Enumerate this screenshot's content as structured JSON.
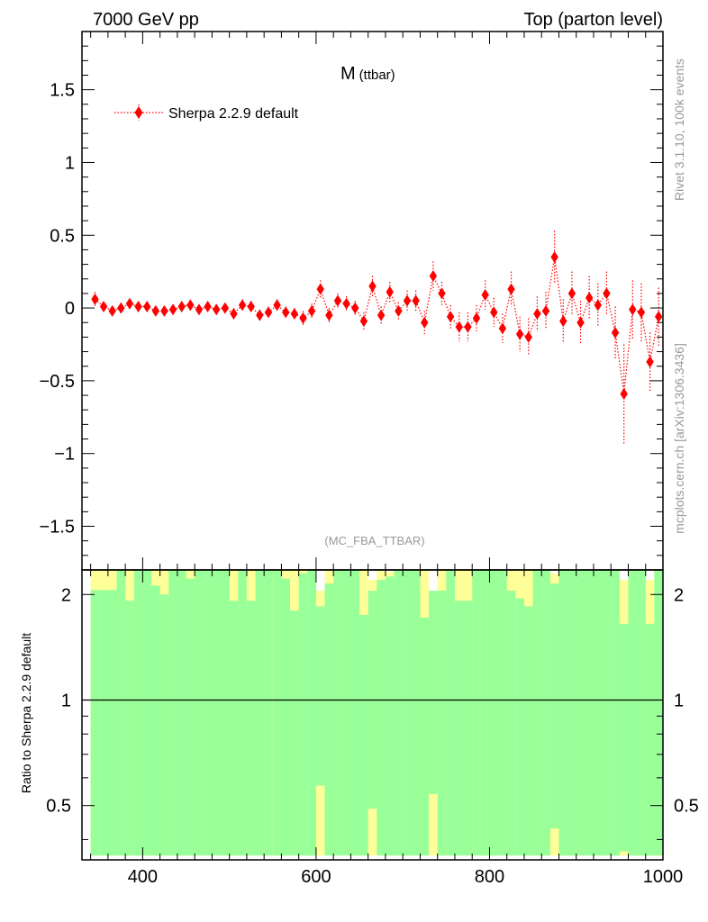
{
  "header": {
    "left_label": "7000 GeV pp",
    "right_label": "Top (parton level)"
  },
  "side_labels": {
    "rivet": "Rivet 3.1.10,  100k events",
    "mcplots": "mcplots.cern.ch [arXiv:1306.3436]"
  },
  "chart_data": [
    {
      "type": "line",
      "title": "M",
      "title_sub": "(ttbar)",
      "watermark": "(MC_FBA_TTBAR)",
      "xlim": [
        330,
        1000
      ],
      "ylim": [
        -1.8,
        1.9
      ],
      "yticks": [
        -1.5,
        -1,
        -0.5,
        0,
        0.5,
        1,
        1.5
      ],
      "ytick_labels": [
        "−1.5",
        "−1",
        "−0.5",
        "0",
        "0.5",
        "1",
        "1.5"
      ],
      "legend": "top-left",
      "series": [
        {
          "name": "Sherpa 2.2.9 default",
          "color": "#ff0000",
          "marker": "diamond",
          "line_style": "dotted",
          "x": [
            345,
            355,
            365,
            375,
            385,
            395,
            405,
            415,
            425,
            435,
            445,
            455,
            465,
            475,
            485,
            495,
            505,
            515,
            525,
            535,
            545,
            555,
            565,
            575,
            585,
            595,
            605,
            615,
            625,
            635,
            645,
            655,
            665,
            675,
            685,
            695,
            705,
            715,
            725,
            735,
            745,
            755,
            765,
            775,
            785,
            795,
            805,
            815,
            825,
            835,
            845,
            855,
            865,
            875,
            885,
            895,
            905,
            915,
            925,
            935,
            945,
            955,
            965,
            975,
            985,
            995
          ],
          "y": [
            0.06,
            0.01,
            -0.02,
            0.0,
            0.03,
            0.01,
            0.01,
            -0.02,
            -0.02,
            -0.01,
            0.01,
            0.02,
            -0.01,
            0.01,
            -0.01,
            0.0,
            -0.04,
            0.02,
            0.01,
            -0.05,
            -0.03,
            0.02,
            -0.03,
            -0.04,
            -0.07,
            -0.02,
            0.13,
            -0.05,
            0.05,
            0.03,
            0.0,
            -0.09,
            0.15,
            -0.05,
            0.11,
            -0.02,
            0.05,
            0.05,
            -0.1,
            0.22,
            0.1,
            -0.06,
            -0.13,
            -0.13,
            -0.07,
            0.09,
            -0.03,
            -0.14,
            0.13,
            -0.18,
            -0.2,
            -0.04,
            -0.02,
            0.35,
            -0.09,
            0.1,
            -0.1,
            0.07,
            0.02,
            0.1,
            -0.17,
            -0.59,
            -0.01,
            -0.03,
            -0.37,
            -0.06
          ],
          "yerr": [
            0.05,
            0.03,
            0.03,
            0.03,
            0.03,
            0.03,
            0.03,
            0.03,
            0.03,
            0.03,
            0.03,
            0.03,
            0.03,
            0.03,
            0.03,
            0.03,
            0.04,
            0.04,
            0.04,
            0.04,
            0.04,
            0.04,
            0.04,
            0.04,
            0.05,
            0.05,
            0.06,
            0.05,
            0.05,
            0.05,
            0.05,
            0.06,
            0.07,
            0.06,
            0.07,
            0.06,
            0.07,
            0.07,
            0.08,
            0.1,
            0.08,
            0.08,
            0.1,
            0.1,
            0.09,
            0.1,
            0.1,
            0.1,
            0.12,
            0.12,
            0.13,
            0.12,
            0.13,
            0.18,
            0.15,
            0.15,
            0.15,
            0.15,
            0.15,
            0.15,
            0.18,
            0.34,
            0.2,
            0.2,
            0.2,
            0.2
          ]
        }
      ]
    },
    {
      "type": "bar",
      "ylabel": "Ratio to Sherpa 2.2.9 default",
      "xlim": [
        330,
        1000
      ],
      "ylim": [
        0.35,
        2.35
      ],
      "yscale": "log",
      "yticks": [
        0.5,
        1,
        2
      ],
      "ytick_labels": [
        "0.5",
        "1",
        "2"
      ],
      "xticks": [
        400,
        600,
        800,
        1000
      ],
      "xtick_labels": [
        "400",
        "600",
        "800",
        "1000"
      ],
      "reference_line": 1,
      "bin_edges": [
        340,
        1000
      ],
      "bin_width": 10,
      "band_colors": {
        "one_sigma": "#99ff99",
        "two_sigma": "#ffff99"
      },
      "bins": [
        {
          "x": 345,
          "g": [
            0.36,
            2.06
          ],
          "y": [
            0.36,
            2.35
          ]
        },
        {
          "x": 355,
          "g": [
            0.36,
            2.06
          ],
          "y": [
            0.36,
            2.35
          ]
        },
        {
          "x": 365,
          "g": [
            0.36,
            2.06
          ],
          "y": [
            0.36,
            2.35
          ]
        },
        {
          "x": 375,
          "g": [
            0.36,
            2.35
          ],
          "y": [
            0.36,
            2.35
          ]
        },
        {
          "x": 385,
          "g": [
            0.36,
            1.92
          ],
          "y": [
            0.36,
            2.35
          ]
        },
        {
          "x": 395,
          "g": [
            0.36,
            2.35
          ],
          "y": [
            0.36,
            2.35
          ]
        },
        {
          "x": 405,
          "g": [
            0.36,
            2.35
          ],
          "y": [
            0.36,
            2.35
          ]
        },
        {
          "x": 415,
          "g": [
            0.36,
            2.12
          ],
          "y": [
            0.36,
            2.35
          ]
        },
        {
          "x": 425,
          "g": [
            0.36,
            2.0
          ],
          "y": [
            0.36,
            2.35
          ]
        },
        {
          "x": 435,
          "g": [
            0.36,
            2.35
          ],
          "y": [
            0.36,
            2.35
          ]
        },
        {
          "x": 445,
          "g": [
            0.36,
            2.35
          ],
          "y": [
            0.36,
            2.35
          ]
        },
        {
          "x": 455,
          "g": [
            0.36,
            2.22
          ],
          "y": [
            0.36,
            2.35
          ]
        },
        {
          "x": 465,
          "g": [
            0.36,
            2.35
          ],
          "y": [
            0.36,
            2.35
          ]
        },
        {
          "x": 475,
          "g": [
            0.36,
            2.35
          ],
          "y": [
            0.36,
            2.35
          ]
        },
        {
          "x": 485,
          "g": [
            0.36,
            2.35
          ],
          "y": [
            0.36,
            2.35
          ]
        },
        {
          "x": 495,
          "g": [
            0.36,
            2.35
          ],
          "y": [
            0.36,
            2.35
          ]
        },
        {
          "x": 505,
          "g": [
            0.36,
            1.92
          ],
          "y": [
            0.36,
            2.35
          ]
        },
        {
          "x": 515,
          "g": [
            0.36,
            2.35
          ],
          "y": [
            0.36,
            2.35
          ]
        },
        {
          "x": 525,
          "g": [
            0.36,
            1.92
          ],
          "y": [
            0.36,
            2.35
          ]
        },
        {
          "x": 535,
          "g": [
            0.36,
            2.35
          ],
          "y": [
            0.36,
            2.35
          ]
        },
        {
          "x": 545,
          "g": [
            0.36,
            2.35
          ],
          "y": [
            0.36,
            2.35
          ]
        },
        {
          "x": 555,
          "g": [
            0.36,
            2.35
          ],
          "y": [
            0.36,
            2.35
          ]
        },
        {
          "x": 565,
          "g": [
            0.36,
            2.22
          ],
          "y": [
            0.36,
            2.35
          ]
        },
        {
          "x": 575,
          "g": [
            0.36,
            1.8
          ],
          "y": [
            0.36,
            2.35
          ]
        },
        {
          "x": 585,
          "g": [
            0.36,
            2.3
          ],
          "y": [
            0.36,
            2.35
          ]
        },
        {
          "x": 595,
          "g": [
            0.36,
            2.35
          ],
          "y": [
            0.36,
            2.35
          ]
        },
        {
          "x": 605,
          "g": [
            0.57,
            1.85
          ],
          "y": [
            0.36,
            2.05
          ],
          "w": [
            2.05,
            2.35
          ]
        },
        {
          "x": 615,
          "g": [
            0.36,
            2.15
          ],
          "y": [
            0.36,
            2.35
          ]
        },
        {
          "x": 625,
          "g": [
            0.36,
            2.35
          ],
          "y": [
            0.36,
            2.35
          ]
        },
        {
          "x": 635,
          "g": [
            0.36,
            2.35
          ],
          "y": [
            0.36,
            2.35
          ]
        },
        {
          "x": 645,
          "g": [
            0.36,
            2.35
          ],
          "y": [
            0.36,
            2.35
          ]
        },
        {
          "x": 655,
          "g": [
            0.36,
            1.75
          ],
          "y": [
            0.36,
            2.35
          ]
        },
        {
          "x": 665,
          "g": [
            0.49,
            2.05
          ],
          "y": [
            0.36,
            2.2
          ],
          "w": [
            2.2,
            2.35
          ]
        },
        {
          "x": 675,
          "g": [
            0.36,
            2.2
          ],
          "y": [
            0.36,
            2.35
          ]
        },
        {
          "x": 685,
          "g": [
            0.36,
            2.25
          ],
          "y": [
            0.36,
            2.32
          ],
          "w": [
            2.32,
            2.35
          ]
        },
        {
          "x": 695,
          "g": [
            0.36,
            2.35
          ],
          "y": [
            0.36,
            2.35
          ]
        },
        {
          "x": 705,
          "g": [
            0.36,
            2.35
          ],
          "y": [
            0.36,
            2.35
          ]
        },
        {
          "x": 715,
          "g": [
            0.36,
            2.35
          ],
          "y": [
            0.36,
            2.35
          ]
        },
        {
          "x": 725,
          "g": [
            0.36,
            1.72
          ],
          "y": [
            0.36,
            2.35
          ]
        },
        {
          "x": 735,
          "g": [
            0.54,
            2.05
          ],
          "y": [
            0.36,
            1.92
          ],
          "w": [
            2.1,
            2.35
          ]
        },
        {
          "x": 745,
          "g": [
            0.36,
            2.05
          ],
          "y": [
            0.36,
            2.35
          ]
        },
        {
          "x": 755,
          "g": [
            0.36,
            2.35
          ],
          "y": [
            0.36,
            2.35
          ]
        },
        {
          "x": 765,
          "g": [
            0.36,
            1.92
          ],
          "y": [
            0.36,
            2.35
          ]
        },
        {
          "x": 775,
          "g": [
            0.36,
            1.92
          ],
          "y": [
            0.36,
            2.35
          ]
        },
        {
          "x": 785,
          "g": [
            0.36,
            2.35
          ],
          "y": [
            0.36,
            2.35
          ]
        },
        {
          "x": 795,
          "g": [
            0.36,
            2.35
          ],
          "y": [
            0.36,
            2.35
          ]
        },
        {
          "x": 805,
          "g": [
            0.36,
            2.35
          ],
          "y": [
            0.36,
            2.35
          ]
        },
        {
          "x": 815,
          "g": [
            0.36,
            2.35
          ],
          "y": [
            0.36,
            2.35
          ]
        },
        {
          "x": 825,
          "g": [
            0.36,
            2.05
          ],
          "y": [
            0.36,
            2.35
          ]
        },
        {
          "x": 835,
          "g": [
            0.36,
            1.95
          ],
          "y": [
            0.36,
            2.35
          ]
        },
        {
          "x": 845,
          "g": [
            0.36,
            1.85
          ],
          "y": [
            0.36,
            2.35
          ]
        },
        {
          "x": 855,
          "g": [
            0.36,
            2.35
          ],
          "y": [
            0.36,
            2.35
          ]
        },
        {
          "x": 865,
          "g": [
            0.36,
            2.35
          ],
          "y": [
            0.36,
            2.35
          ]
        },
        {
          "x": 875,
          "g": [
            0.43,
            2.15
          ],
          "y": [
            0.36,
            2.3
          ],
          "w": [
            2.3,
            2.35
          ]
        },
        {
          "x": 885,
          "g": [
            0.36,
            2.35
          ],
          "y": [
            0.36,
            2.35
          ]
        },
        {
          "x": 895,
          "g": [
            0.36,
            2.35
          ],
          "y": [
            0.36,
            2.35
          ]
        },
        {
          "x": 905,
          "g": [
            0.36,
            2.35
          ],
          "y": [
            0.36,
            2.35
          ]
        },
        {
          "x": 915,
          "g": [
            0.36,
            2.35
          ],
          "y": [
            0.36,
            2.35
          ]
        },
        {
          "x": 925,
          "g": [
            0.36,
            2.35
          ],
          "y": [
            0.36,
            2.35
          ]
        },
        {
          "x": 935,
          "g": [
            0.36,
            2.35
          ],
          "y": [
            0.36,
            2.35
          ]
        },
        {
          "x": 945,
          "g": [
            0.36,
            2.35
          ],
          "y": [
            0.36,
            2.35
          ]
        },
        {
          "x": 955,
          "g": [
            0.37,
            1.65
          ],
          "y": [
            0.36,
            2.2
          ],
          "w": [
            2.2,
            2.35
          ]
        },
        {
          "x": 965,
          "g": [
            0.36,
            2.35
          ],
          "y": [
            0.36,
            2.35
          ]
        },
        {
          "x": 975,
          "g": [
            0.36,
            2.35
          ],
          "y": [
            0.36,
            2.35
          ]
        },
        {
          "x": 985,
          "g": [
            0.36,
            1.65
          ],
          "y": [
            0.36,
            2.2
          ],
          "w": [
            2.2,
            2.35
          ]
        },
        {
          "x": 995,
          "g": [
            0.36,
            2.35
          ],
          "y": [
            0.36,
            2.35
          ]
        }
      ]
    }
  ]
}
